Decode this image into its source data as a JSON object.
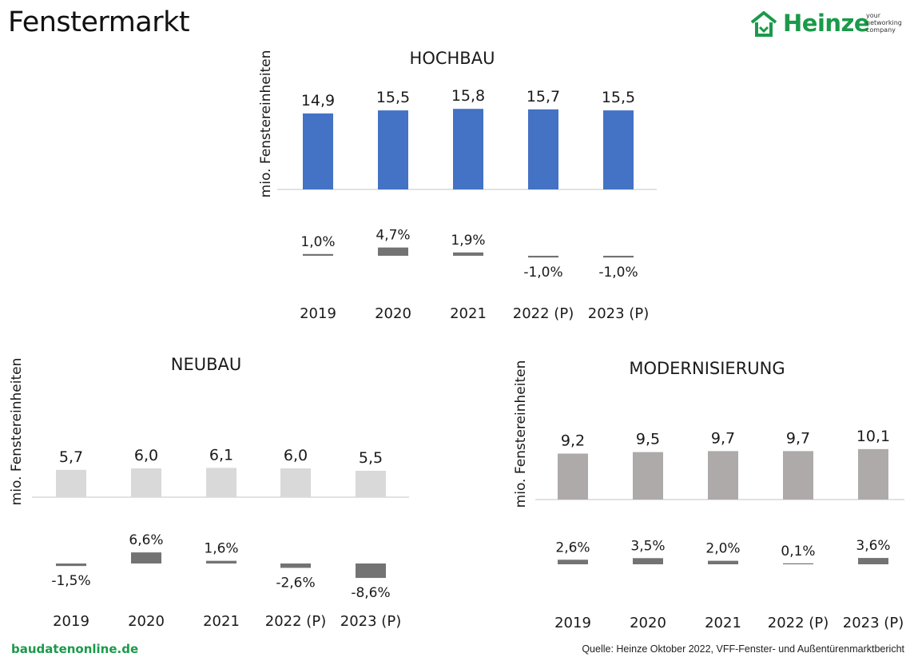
{
  "header": {
    "title": "Fenstermarkt"
  },
  "logo": {
    "name": "Heinze",
    "tagline": [
      "your",
      "networking",
      "company"
    ],
    "color": "#1a9a4a"
  },
  "footer": {
    "site": "baudatenonline.de",
    "source": "Quelle: Heinze Oktober 2022, VFF-Fenster- und Außentürenmarktbericht"
  },
  "chart_data": [
    {
      "type": "bar",
      "title": "HOCHBAU",
      "ylabel": "mio. Fenstereinheiten",
      "categories": [
        "2019",
        "2020",
        "2021",
        "2022 (P)",
        "2023 (P)"
      ],
      "values": [
        14.9,
        15.5,
        15.8,
        15.7,
        15.5
      ],
      "value_labels": [
        "14,9",
        "15,5",
        "15,8",
        "15,7",
        "15,5"
      ],
      "growth": [
        1.0,
        4.7,
        1.9,
        -1.0,
        -1.0
      ],
      "growth_labels": [
        "1,0%",
        "4,7%",
        "1,9%",
        "-1,0%",
        "-1,0%"
      ],
      "bar_color": "#4472c4",
      "growth_color": "#737373"
    },
    {
      "type": "bar",
      "title": "NEUBAU",
      "ylabel": "mio. Fenstereinheiten",
      "categories": [
        "2019",
        "2020",
        "2021",
        "2022 (P)",
        "2023 (P)"
      ],
      "values": [
        5.7,
        6.0,
        6.1,
        6.0,
        5.5
      ],
      "value_labels": [
        "5,7",
        "6,0",
        "6,1",
        "6,0",
        "5,5"
      ],
      "growth": [
        -1.5,
        6.6,
        1.6,
        -2.6,
        -8.6
      ],
      "growth_labels": [
        "-1,5%",
        "6,6%",
        "1,6%",
        "-2,6%",
        "-8,6%"
      ],
      "bar_color": "#d9d9d9",
      "growth_color": "#737373"
    },
    {
      "type": "bar",
      "title": "MODERNISIERUNG",
      "ylabel": "mio. Fenstereinheiten",
      "categories": [
        "2019",
        "2020",
        "2021",
        "2022 (P)",
        "2023 (P)"
      ],
      "values": [
        9.2,
        9.5,
        9.7,
        9.7,
        10.1
      ],
      "value_labels": [
        "9,2",
        "9,5",
        "9,7",
        "9,7",
        "10,1"
      ],
      "growth": [
        2.6,
        3.5,
        2.0,
        0.1,
        3.6
      ],
      "growth_labels": [
        "2,6%",
        "3,5%",
        "2,0%",
        "0,1%",
        "3,6%"
      ],
      "bar_color": "#aeaaaa",
      "growth_color": "#737373"
    }
  ]
}
